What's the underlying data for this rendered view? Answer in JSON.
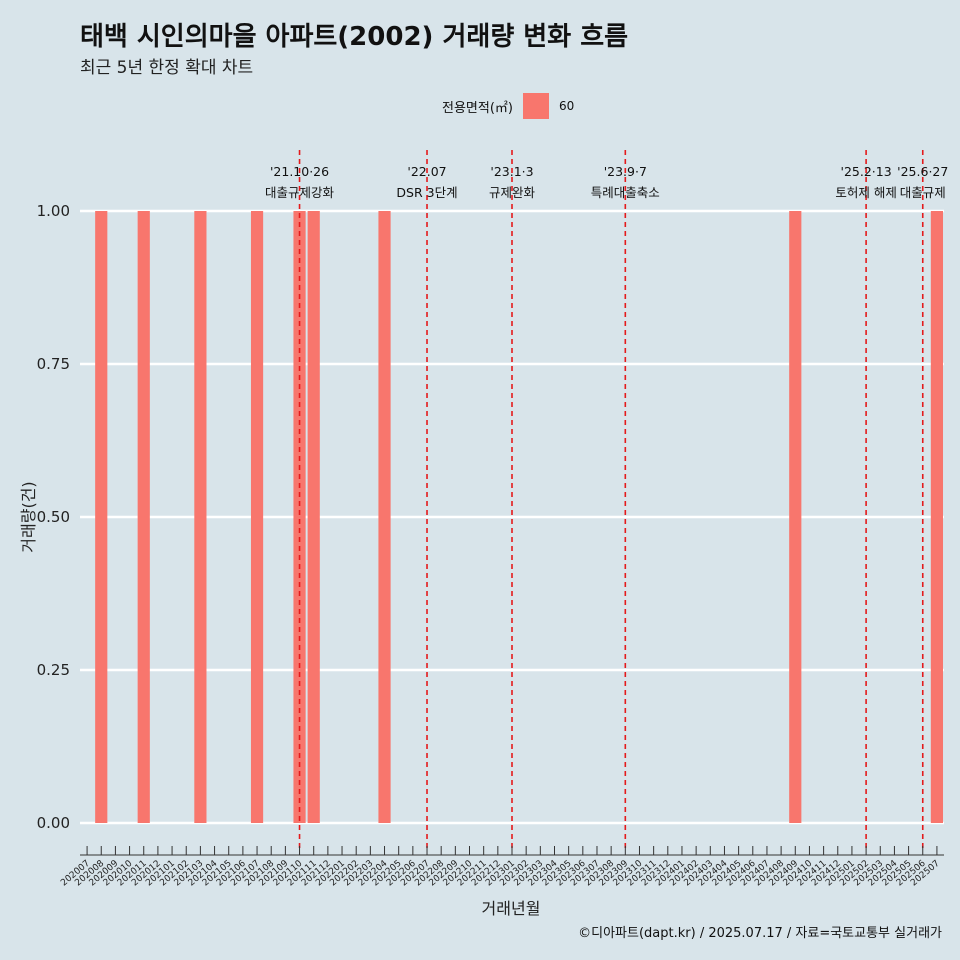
{
  "title": "태백 시인의마을 아파트(2002) 거래량 변화 흐름",
  "subtitle": "최근 5년 한정 확대 차트",
  "legend": {
    "title": "전용면적(㎡)",
    "label": "60"
  },
  "caption": "©디아파트(dapt.kr) / 2025.07.17 / 자료=국토교통부 실거래가",
  "colors": {
    "bar": "#f8766d",
    "vline": "#e41a1c",
    "grid": "#ffffff",
    "background": "#d8e4ea"
  },
  "chart_data": {
    "type": "bar",
    "xlabel": "거래년월",
    "ylabel": "거래량(건)",
    "ylim": [
      0,
      1
    ],
    "y_ticks": [
      "0.00",
      "0.25",
      "0.50",
      "0.75",
      "1.00"
    ],
    "y_tick_values": [
      0,
      0.25,
      0.5,
      0.75,
      1.0
    ],
    "categories": [
      "202007",
      "202008",
      "202009",
      "202010",
      "202011",
      "202012",
      "202101",
      "202102",
      "202103",
      "202104",
      "202105",
      "202106",
      "202107",
      "202108",
      "202109",
      "202110",
      "202111",
      "202112",
      "202201",
      "202202",
      "202203",
      "202204",
      "202205",
      "202206",
      "202207",
      "202208",
      "202209",
      "202210",
      "202211",
      "202212",
      "202301",
      "202302",
      "202303",
      "202304",
      "202305",
      "202306",
      "202307",
      "202308",
      "202309",
      "202310",
      "202311",
      "202312",
      "202401",
      "202402",
      "202403",
      "202404",
      "202405",
      "202406",
      "202407",
      "202408",
      "202409",
      "202410",
      "202411",
      "202412",
      "202501",
      "202502",
      "202503",
      "202504",
      "202505",
      "202506",
      "202507"
    ],
    "series": [
      {
        "name": "60",
        "points": [
          {
            "x": "202008",
            "y": 1
          },
          {
            "x": "202011",
            "y": 1
          },
          {
            "x": "202103",
            "y": 1
          },
          {
            "x": "202107",
            "y": 1
          },
          {
            "x": "202110",
            "y": 1
          },
          {
            "x": "202111",
            "y": 1
          },
          {
            "x": "202204",
            "y": 1
          },
          {
            "x": "202409",
            "y": 1
          },
          {
            "x": "202507",
            "y": 1
          }
        ]
      }
    ],
    "annotations": [
      {
        "x": "202110",
        "offset": 0.0,
        "line1": "'21.10·26",
        "line2": "대출규제강화"
      },
      {
        "x": "202207",
        "offset": 0.0,
        "line1": "'22.07",
        "line2": "DSR 3단계"
      },
      {
        "x": "202301",
        "offset": 0.0,
        "line1": "'23.1·3",
        "line2": "규제완화"
      },
      {
        "x": "202309",
        "offset": 0.0,
        "line1": "'23.9·7",
        "line2": "특례대출축소"
      },
      {
        "x": "202502",
        "offset": 0.0,
        "line1": "'25.2·13",
        "line2": "토허제 해제"
      },
      {
        "x": "202506",
        "offset": 0.0,
        "line1": "'25.6·27",
        "line2": "대출규제"
      }
    ]
  }
}
